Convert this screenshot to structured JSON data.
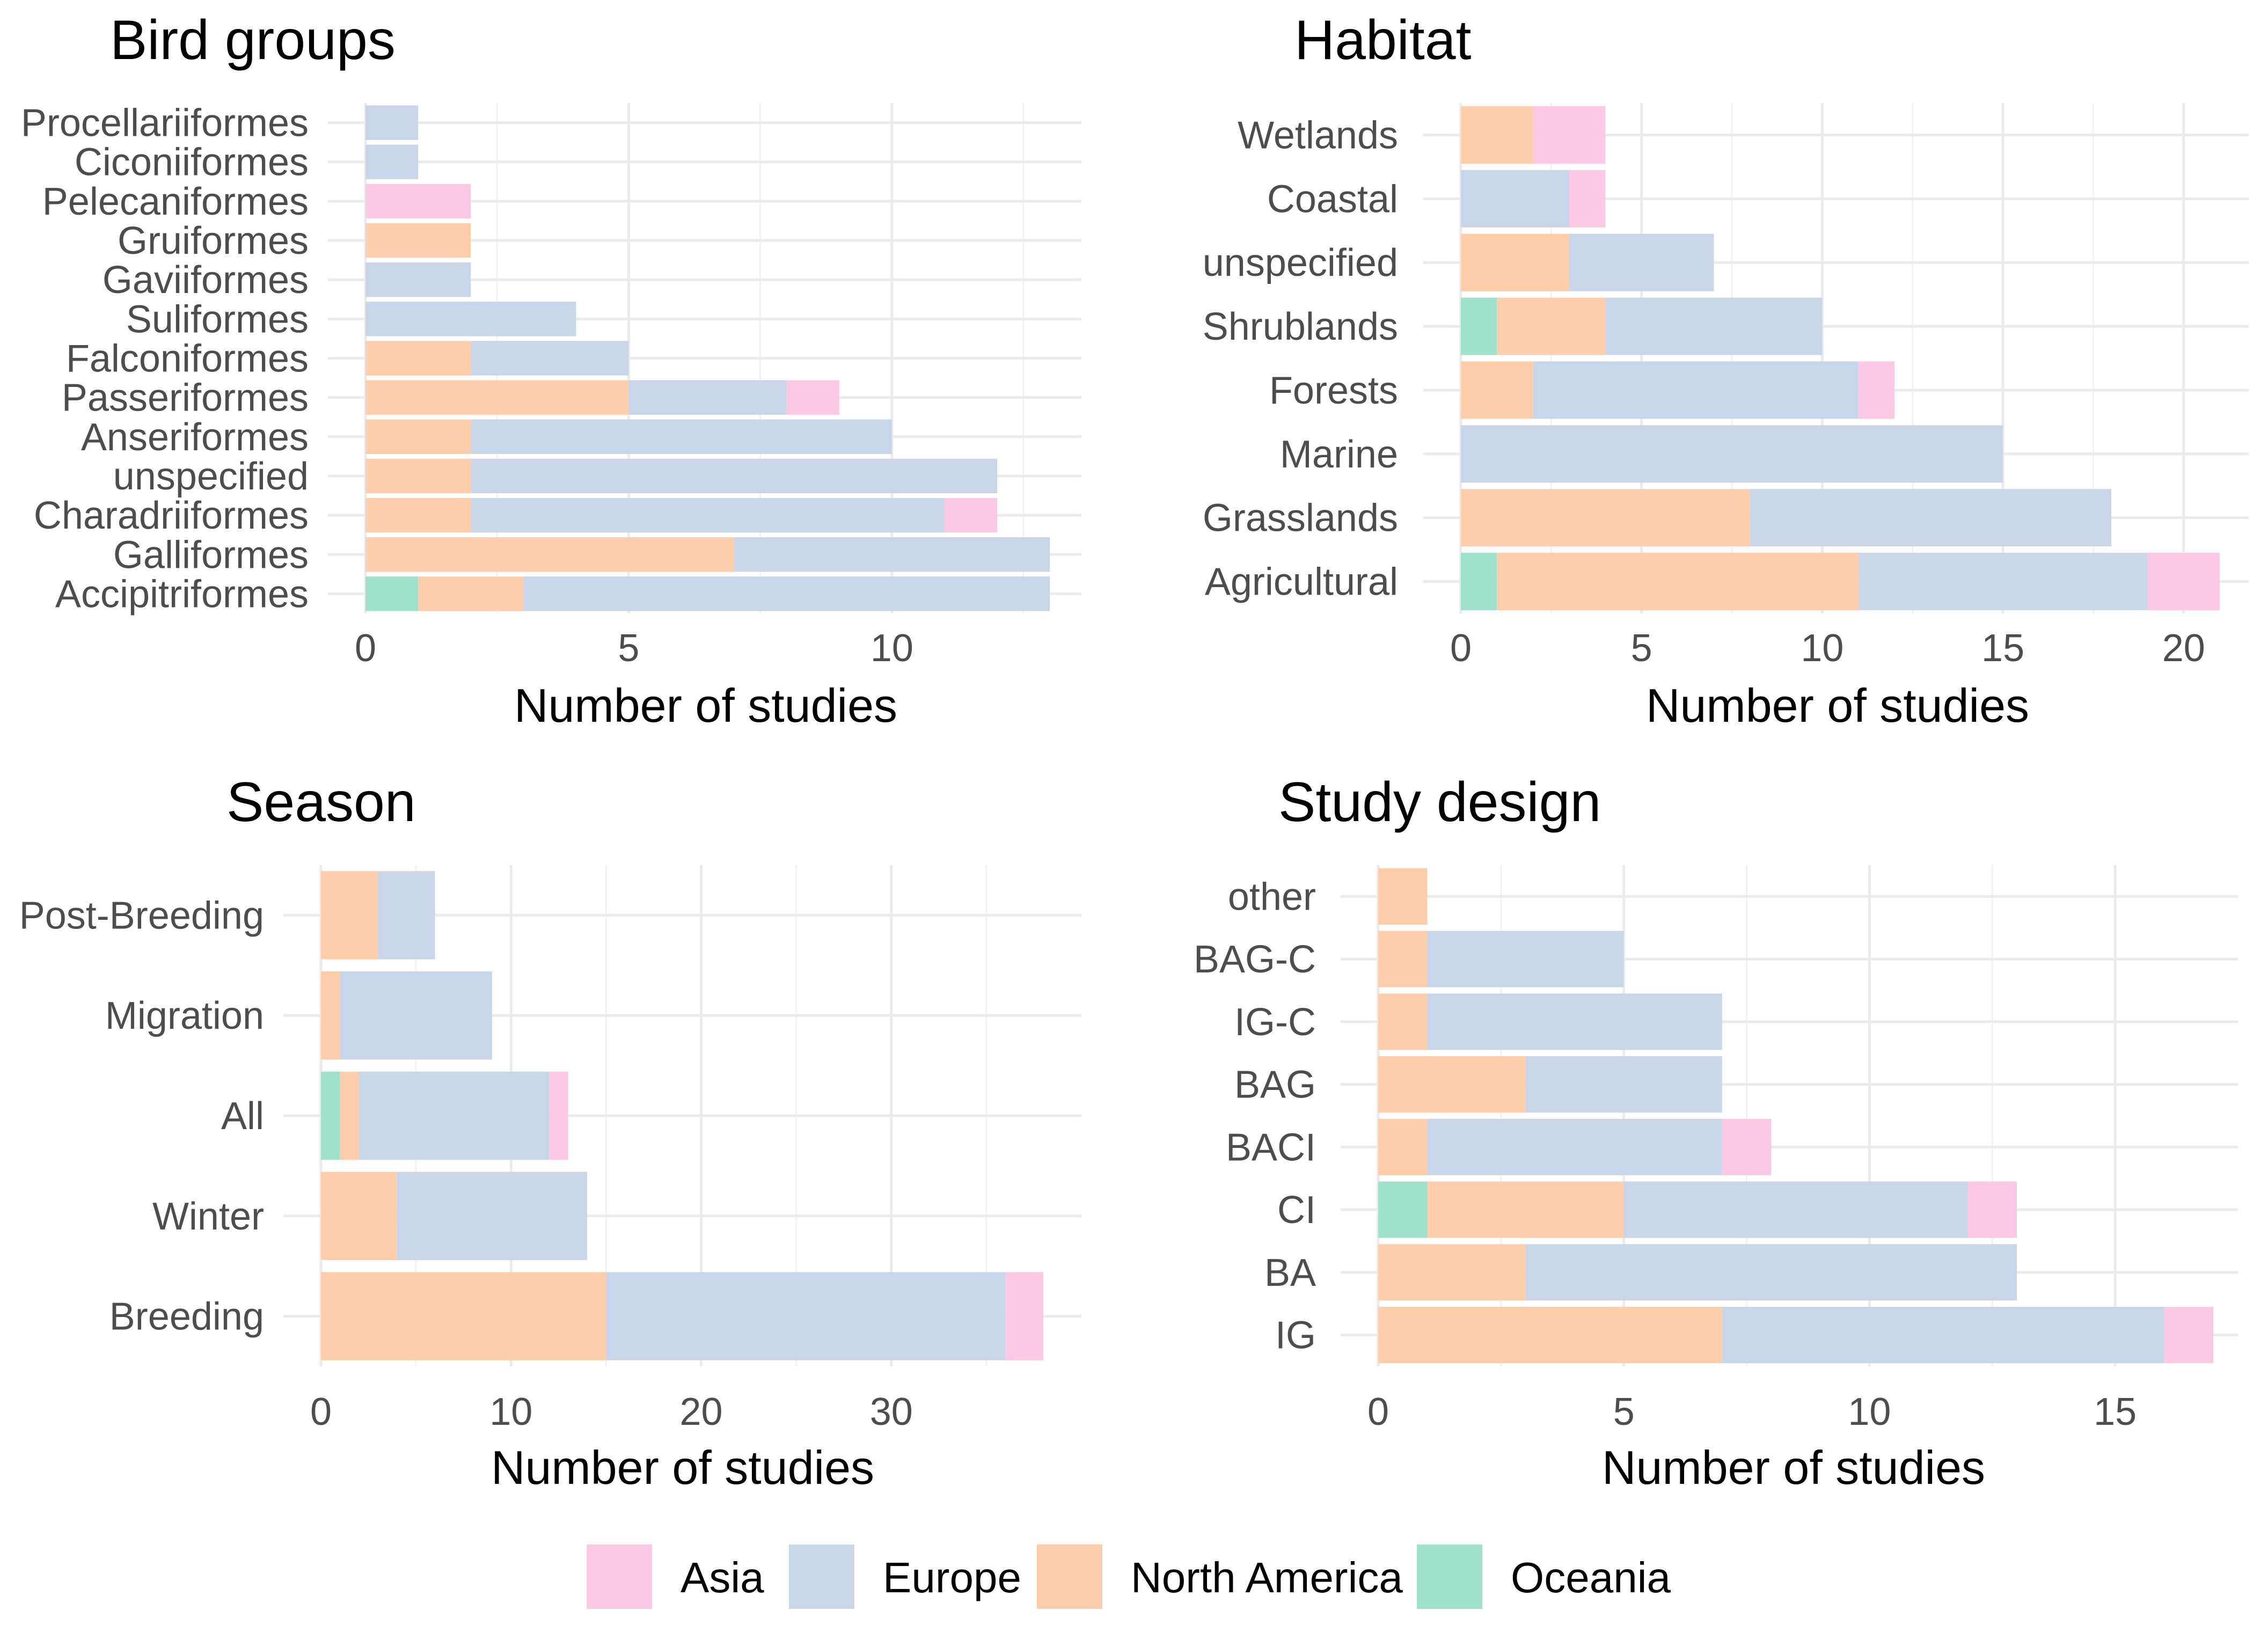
{
  "legend": {
    "items": [
      {
        "name": "Asia",
        "color": "#FCC9E4"
      },
      {
        "name": "Europe",
        "color": "#C9D5E8"
      },
      {
        "name": "North America",
        "color": "#FDCDAC"
      },
      {
        "name": "Oceania",
        "color": "#A0E1CB"
      }
    ]
  },
  "chart_data": [
    {
      "type": "bar",
      "orientation": "horizontal",
      "stacked": true,
      "title": "Bird groups",
      "xlabel": "Number of studies",
      "ylabel": "",
      "xlim": [
        0,
        13.6
      ],
      "xticks": [
        0,
        5,
        10
      ],
      "categories": [
        "Procellariiformes",
        "Ciconiiformes",
        "Pelecaniformes",
        "Gruiformes",
        "Gaviiformes",
        "Suliformes",
        "Falconiformes",
        "Passeriformes",
        "Anseriformes",
        "unspecified",
        "Charadriiformes",
        "Galliformes",
        "Accipitriformes"
      ],
      "series": [
        {
          "name": "Oceania",
          "values": [
            0,
            0,
            0,
            0,
            0,
            0,
            0,
            0,
            0,
            0,
            0,
            0,
            1
          ]
        },
        {
          "name": "North America",
          "values": [
            0,
            0,
            0,
            2,
            0,
            0,
            2,
            5,
            2,
            2,
            2,
            7,
            2
          ]
        },
        {
          "name": "Europe",
          "values": [
            1,
            1,
            0,
            0,
            2,
            4,
            3,
            3,
            8,
            10,
            9,
            6,
            10
          ]
        },
        {
          "name": "Asia",
          "values": [
            0,
            0,
            2,
            0,
            0,
            0,
            0,
            1,
            0,
            0,
            1,
            0,
            0
          ]
        }
      ]
    },
    {
      "type": "bar",
      "orientation": "horizontal",
      "stacked": true,
      "title": "Habitat",
      "xlabel": "Number of studies",
      "ylabel": "",
      "xlim": [
        0,
        21.8
      ],
      "xticks": [
        0,
        5,
        10,
        15,
        20
      ],
      "categories": [
        "Wetlands",
        "Coastal",
        "unspecified",
        "Shrublands",
        "Forests",
        "Marine",
        "Grasslands",
        "Agricultural"
      ],
      "series": [
        {
          "name": "Oceania",
          "values": [
            0,
            0,
            0,
            1,
            0,
            0,
            0,
            1
          ]
        },
        {
          "name": "North America",
          "values": [
            2,
            0,
            3,
            3,
            2,
            0,
            8,
            10
          ]
        },
        {
          "name": "Europe",
          "values": [
            0,
            3,
            4,
            6,
            9,
            15,
            10,
            8
          ]
        },
        {
          "name": "Asia",
          "values": [
            2,
            1,
            0,
            0,
            1,
            0,
            0,
            2
          ]
        }
      ]
    },
    {
      "type": "bar",
      "orientation": "horizontal",
      "stacked": true,
      "title": "Season",
      "xlabel": "Number of studies",
      "ylabel": "",
      "xlim": [
        0,
        40
      ],
      "xticks": [
        0,
        10,
        20,
        30
      ],
      "categories": [
        "Post-Breeding",
        "Migration",
        "All",
        "Winter",
        "Breeding"
      ],
      "series": [
        {
          "name": "Oceania",
          "values": [
            0,
            0,
            1,
            0,
            0
          ]
        },
        {
          "name": "North America",
          "values": [
            3,
            1,
            1,
            4,
            15
          ]
        },
        {
          "name": "Europe",
          "values": [
            3,
            8,
            10,
            10,
            21
          ]
        },
        {
          "name": "Asia",
          "values": [
            0,
            0,
            1,
            0,
            2
          ]
        }
      ]
    },
    {
      "type": "bar",
      "orientation": "horizontal",
      "stacked": true,
      "title": "Study design",
      "xlabel": "Number of studies",
      "ylabel": "",
      "xlim": [
        0,
        17.5
      ],
      "xticks": [
        0,
        5,
        10,
        15
      ],
      "categories": [
        "other",
        "BAG-C",
        "IG-C",
        "BAG",
        "BACI",
        "CI",
        "BA",
        "IG"
      ],
      "series": [
        {
          "name": "Oceania",
          "values": [
            0,
            0,
            0,
            0,
            0,
            1,
            0,
            0
          ]
        },
        {
          "name": "North America",
          "values": [
            1,
            1,
            1,
            3,
            1,
            4,
            3,
            7
          ]
        },
        {
          "name": "Europe",
          "values": [
            0,
            4,
            6,
            4,
            6,
            7,
            10,
            9
          ]
        },
        {
          "name": "Asia",
          "values": [
            0,
            0,
            0,
            0,
            1,
            1,
            0,
            1
          ]
        }
      ]
    }
  ]
}
